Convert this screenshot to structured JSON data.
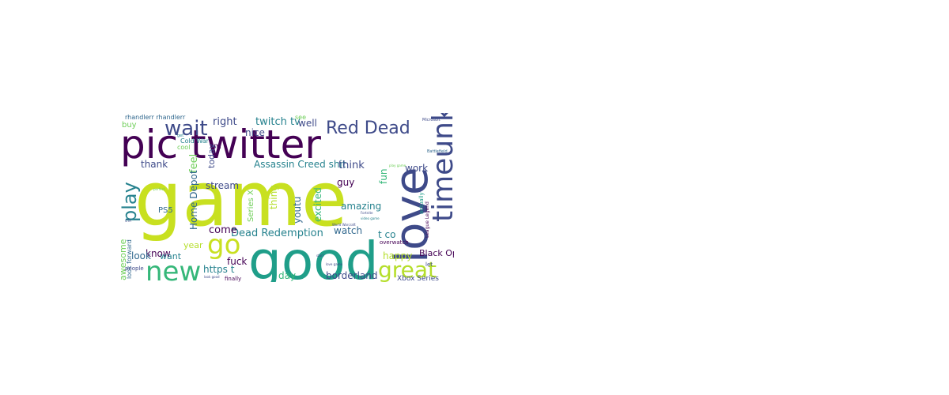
{
  "colors": {
    "dark_purple": "#440154",
    "indigo": "#3e4a89",
    "steel_blue": "#31688e",
    "teal": "#26828e",
    "green_teal": "#1f9e89",
    "green": "#35b779",
    "lime": "#6ece58",
    "yellow_green": "#b5de2b",
    "yellow": "#c8e020"
  },
  "words": [
    {
      "text": "game"
    },
    {
      "text": "pic twitter"
    },
    {
      "text": "good"
    },
    {
      "text": "love"
    },
    {
      "text": "new"
    },
    {
      "text": "go"
    },
    {
      "text": "timeunk"
    },
    {
      "text": "great"
    },
    {
      "text": "wait"
    },
    {
      "text": "Red Dead"
    },
    {
      "text": "play"
    },
    {
      "text": "Dead Redemption"
    },
    {
      "text": "Assassin Creed shit"
    },
    {
      "text": "twitch tv"
    },
    {
      "text": "right"
    },
    {
      "text": "well"
    },
    {
      "text": "see"
    },
    {
      "text": "nice"
    },
    {
      "text": "think"
    },
    {
      "text": "thank"
    },
    {
      "text": "feel"
    },
    {
      "text": "Home Depot"
    },
    {
      "text": "today"
    },
    {
      "text": "stream"
    },
    {
      "text": "guy"
    },
    {
      "text": "fun"
    },
    {
      "text": "work"
    },
    {
      "text": "amazing"
    },
    {
      "text": "excited"
    },
    {
      "text": "youtu"
    },
    {
      "text": "thing"
    },
    {
      "text": "Series X"
    },
    {
      "text": "PS5"
    },
    {
      "text": "know"
    },
    {
      "text": "come"
    },
    {
      "text": "watch"
    },
    {
      "text": "t co"
    },
    {
      "text": "happy"
    },
    {
      "text": "Black Op"
    },
    {
      "text": "awesome"
    },
    {
      "text": "look forward"
    },
    {
      "text": "look"
    },
    {
      "text": "want"
    },
    {
      "text": "year"
    },
    {
      "text": "https t"
    },
    {
      "text": "fuck"
    },
    {
      "text": "day"
    },
    {
      "text": "borderland"
    },
    {
      "text": "Xbox Series"
    },
    {
      "text": "buy"
    },
    {
      "text": "rhandlerr rhandlerr"
    },
    {
      "text": "Cold War"
    },
    {
      "text": "cool"
    },
    {
      "text": "overwatch"
    },
    {
      "text": "actually"
    },
    {
      "text": "League Legend"
    },
    {
      "text": "Battlefield"
    },
    {
      "text": "Microsoft"
    },
    {
      "text": "people"
    },
    {
      "text": "let"
    },
    {
      "text": "finally"
    },
    {
      "text": "play game"
    },
    {
      "text": "video game"
    },
    {
      "text": "start"
    },
    {
      "text": "World Warcraft"
    },
    {
      "text": "Fortnite"
    },
    {
      "text": "GTA"
    },
    {
      "text": "perfect"
    },
    {
      "text": "love game"
    },
    {
      "text": "look good"
    },
    {
      "text": "get"
    },
    {
      "text": "m"
    }
  ]
}
